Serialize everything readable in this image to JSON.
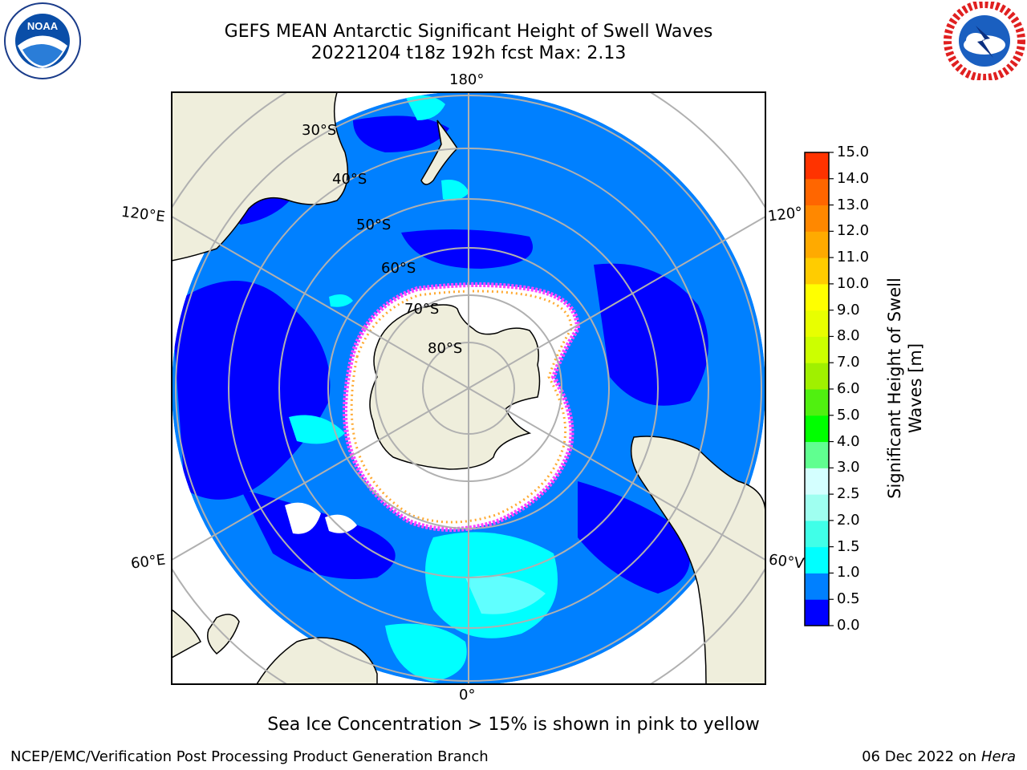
{
  "header": {
    "title_line1": "GEFS MEAN Antarctic Significant Height of Swell Waves",
    "title_line2": "20221204 t18z 192h fcst   Max: 2.13"
  },
  "logos": {
    "left": "noaa-logo",
    "right": "national-weather-service-logo"
  },
  "map": {
    "projection": "south-polar-stereographic",
    "longitude_labels": {
      "top": "180°",
      "bottom": "0°",
      "left_upper": "120°E",
      "left_lower": "60°E",
      "right_upper": "120°",
      "right_lower": "60°V"
    },
    "latitude_labels": [
      "30°S",
      "40°S",
      "50°S",
      "60°S",
      "70°S",
      "80°S"
    ],
    "colors": {
      "land": "#efeedc",
      "ocean_0": "#0000ff",
      "ocean_05": "#0080ff",
      "ocean_10": "#00ffff",
      "ice": "#ffffff",
      "ice_edge": "#ff44ff",
      "graticule": "#b0b0b0"
    }
  },
  "colorbar": {
    "label": "Significant Height of Swell Waves [m]",
    "ticks": [
      "0.0",
      "0.5",
      "1.0",
      "1.5",
      "2.0",
      "2.5",
      "3.0",
      "4.0",
      "5.0",
      "6.0",
      "7.0",
      "8.0",
      "9.0",
      "10.0",
      "11.0",
      "12.0",
      "13.0",
      "14.0",
      "15.0"
    ],
    "colors": [
      "#0000ff",
      "#0080ff",
      "#00ffff",
      "#40ffe8",
      "#9ffff0",
      "#d4ffff",
      "#60ff90",
      "#00ff00",
      "#50f010",
      "#a0f000",
      "#ccff00",
      "#e8ff00",
      "#ffff00",
      "#ffcc00",
      "#ffaa00",
      "#ff8800",
      "#ff6600",
      "#ff3300",
      "#ff0000"
    ]
  },
  "notes": {
    "sea_ice": "Sea Ice Concentration > 15% is shown in pink to yellow",
    "footer_left": "NCEP/EMC/Verification Post Processing Product Generation Branch",
    "footer_date": "06 Dec 2022 on",
    "footer_host": "Hera"
  }
}
